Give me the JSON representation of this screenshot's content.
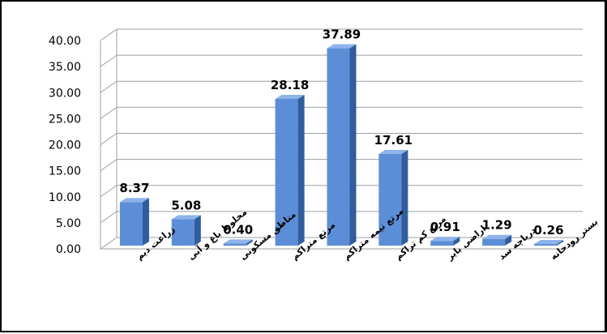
{
  "chart_data": {
    "type": "bar",
    "style": "3d-column",
    "categories": [
      "زراعت دیم",
      "مخلوط باغ و آبی",
      "مناطق مسکونی",
      "مرتع متراکم",
      "مرتع نیمه متراکم",
      "مرتع کم تراکم",
      "اراضی بایر",
      "دریاچه سد",
      "بستر رودخانه"
    ],
    "values": [
      8.37,
      5.08,
      0.4,
      28.18,
      37.89,
      17.61,
      0.91,
      1.29,
      0.26
    ],
    "data_labels": [
      "8.37",
      "5.08",
      "0.40",
      "28.18",
      "37.89",
      "17.61",
      "0.91",
      "1.29",
      "0.26"
    ],
    "y_ticks": [
      "0.00",
      "5.00",
      "10.00",
      "15.00",
      "20.00",
      "25.00",
      "30.00",
      "35.00",
      "40.00"
    ],
    "ylim": [
      0,
      40
    ],
    "grid": true,
    "legend": "none",
    "colors": {
      "bar_front": "#5b8ed6",
      "bar_side": "#2f5d9e",
      "bar_top": "#8db3ea",
      "grid": "#9aa0a6",
      "text": "#000000"
    }
  }
}
